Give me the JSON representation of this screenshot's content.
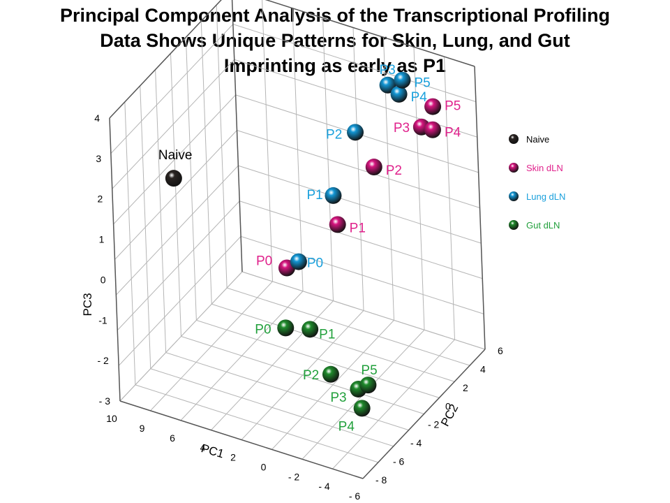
{
  "title": {
    "line1": "Principal Component Analysis of the Transcriptional Profiling",
    "line2": "Data Shows Unique Patterns for Skin, Lung, and Gut",
    "line3": "Imprinting as early as P1"
  },
  "chart_data": {
    "type": "scatter",
    "projection": "3d",
    "grid": true,
    "legend_position": "right",
    "axes": {
      "x": {
        "label": "PC1",
        "ticks": [
          "10",
          "9",
          "6",
          "4",
          "2",
          "0",
          "- 2",
          "- 4",
          "- 6"
        ]
      },
      "y": {
        "label": "PC2",
        "ticks": [
          "- 8",
          "- 6",
          "- 4",
          "- 2",
          "0",
          "2",
          "4",
          "6"
        ]
      },
      "z": {
        "label": "PC3",
        "ticks": [
          "- 3",
          "- 2",
          "-1",
          "0",
          "1",
          "2",
          "3",
          "4"
        ]
      }
    },
    "series": [
      {
        "name": "Naive",
        "color": "#2a2422",
        "label_color": "#000000",
        "points": [
          {
            "label": "Naive",
            "pc1": 9.5,
            "pc2": -2.0,
            "pc3": 1.2
          }
        ]
      },
      {
        "name": "Skin dLN",
        "color": "#d6157f",
        "label_color": "#e0228c",
        "points": [
          {
            "label": "P0",
            "pc1": 2.3,
            "pc2": -1.8,
            "pc3": -0.2
          },
          {
            "label": "P1",
            "pc1": 0.2,
            "pc2": 0.5,
            "pc3": 0.6
          },
          {
            "label": "P2",
            "pc1": -1.7,
            "pc2": 1.6,
            "pc3": 2.0
          },
          {
            "label": "P3",
            "pc1": -4.0,
            "pc2": 3.2,
            "pc3": 2.9
          },
          {
            "label": "P4",
            "pc1": -4.5,
            "pc2": 3.6,
            "pc3": 2.8
          },
          {
            "label": "P5",
            "pc1": -4.2,
            "pc2": 4.2,
            "pc3": 3.2
          }
        ]
      },
      {
        "name": "Lung dLN",
        "color": "#1396d4",
        "label_color": "#1aa0dc",
        "points": [
          {
            "label": "P0",
            "pc1": 1.8,
            "pc2": -1.3,
            "pc3": -0.1
          },
          {
            "label": "P1",
            "pc1": 0.6,
            "pc2": 0.8,
            "pc3": 1.2
          },
          {
            "label": "P2",
            "pc1": -0.3,
            "pc2": 2.0,
            "pc3": 2.6
          },
          {
            "label": "P3",
            "pc1": -2.1,
            "pc2": 2.8,
            "pc3": 3.8
          },
          {
            "label": "P4",
            "pc1": -2.7,
            "pc2": 3.0,
            "pc3": 3.6
          },
          {
            "label": "P5",
            "pc1": -2.6,
            "pc2": 3.6,
            "pc3": 3.8
          }
        ]
      },
      {
        "name": "Gut dLN",
        "color": "#1f8a2c",
        "label_color": "#22a03c",
        "points": [
          {
            "label": "P0",
            "pc1": 1.5,
            "pc2": -3.5,
            "pc3": -1.2
          },
          {
            "label": "P1",
            "pc1": 0.0,
            "pc2": -3.3,
            "pc3": -1.1
          },
          {
            "label": "P2",
            "pc1": -2.0,
            "pc2": -4.5,
            "pc3": -1.7
          },
          {
            "label": "P3",
            "pc1": -4.1,
            "pc2": -5.0,
            "pc3": -1.7
          },
          {
            "label": "P4",
            "pc1": -4.6,
            "pc2": -5.5,
            "pc3": -2.0
          },
          {
            "label": "P5",
            "pc1": -4.4,
            "pc2": -4.4,
            "pc3": -1.7
          }
        ]
      }
    ]
  }
}
